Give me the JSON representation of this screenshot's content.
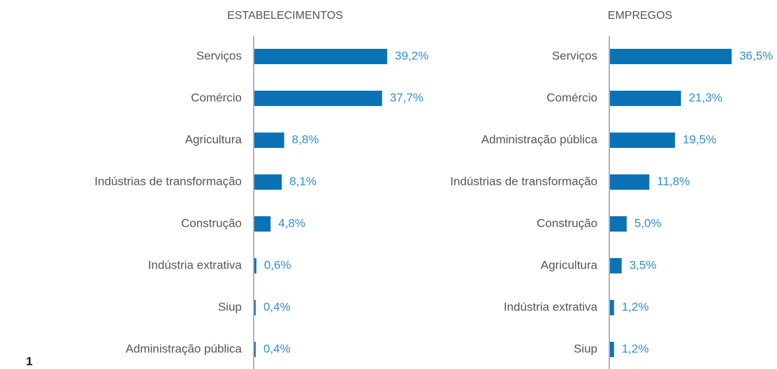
{
  "chart_data": [
    {
      "type": "bar",
      "orientation": "horizontal",
      "title": "ESTABELECIMENTOS",
      "color": "#0b72b5",
      "categories": [
        "Serviços",
        "Comércio",
        "Agricultura",
        "Indústrias de transformação",
        "Construção",
        "Indústria extrativa",
        "Siup",
        "Administração pública"
      ],
      "values": [
        39.2,
        37.7,
        8.8,
        8.1,
        4.8,
        0.6,
        0.4,
        0.4
      ],
      "value_labels": [
        "39,2%",
        "37,7%",
        "8,8%",
        "8,1%",
        "4,8%",
        "0,6%",
        "0,4%",
        "0,4%"
      ]
    },
    {
      "type": "bar",
      "orientation": "horizontal",
      "title": "EMPREGOS",
      "color": "#0b72b5",
      "categories": [
        "Serviços",
        "Comércio",
        "Administração pública",
        "Indústrias de transformação",
        "Construção",
        "Agricultura",
        "Indústria extrativa",
        "Siup"
      ],
      "values": [
        36.5,
        21.3,
        19.5,
        11.8,
        5.0,
        3.5,
        1.2,
        1.2
      ],
      "value_labels": [
        "36,5%",
        "21,3%",
        "19,5%",
        "11,8%",
        "5,0%",
        "3,5%",
        "1,2%",
        "1,2%"
      ]
    }
  ],
  "footnote": "1"
}
